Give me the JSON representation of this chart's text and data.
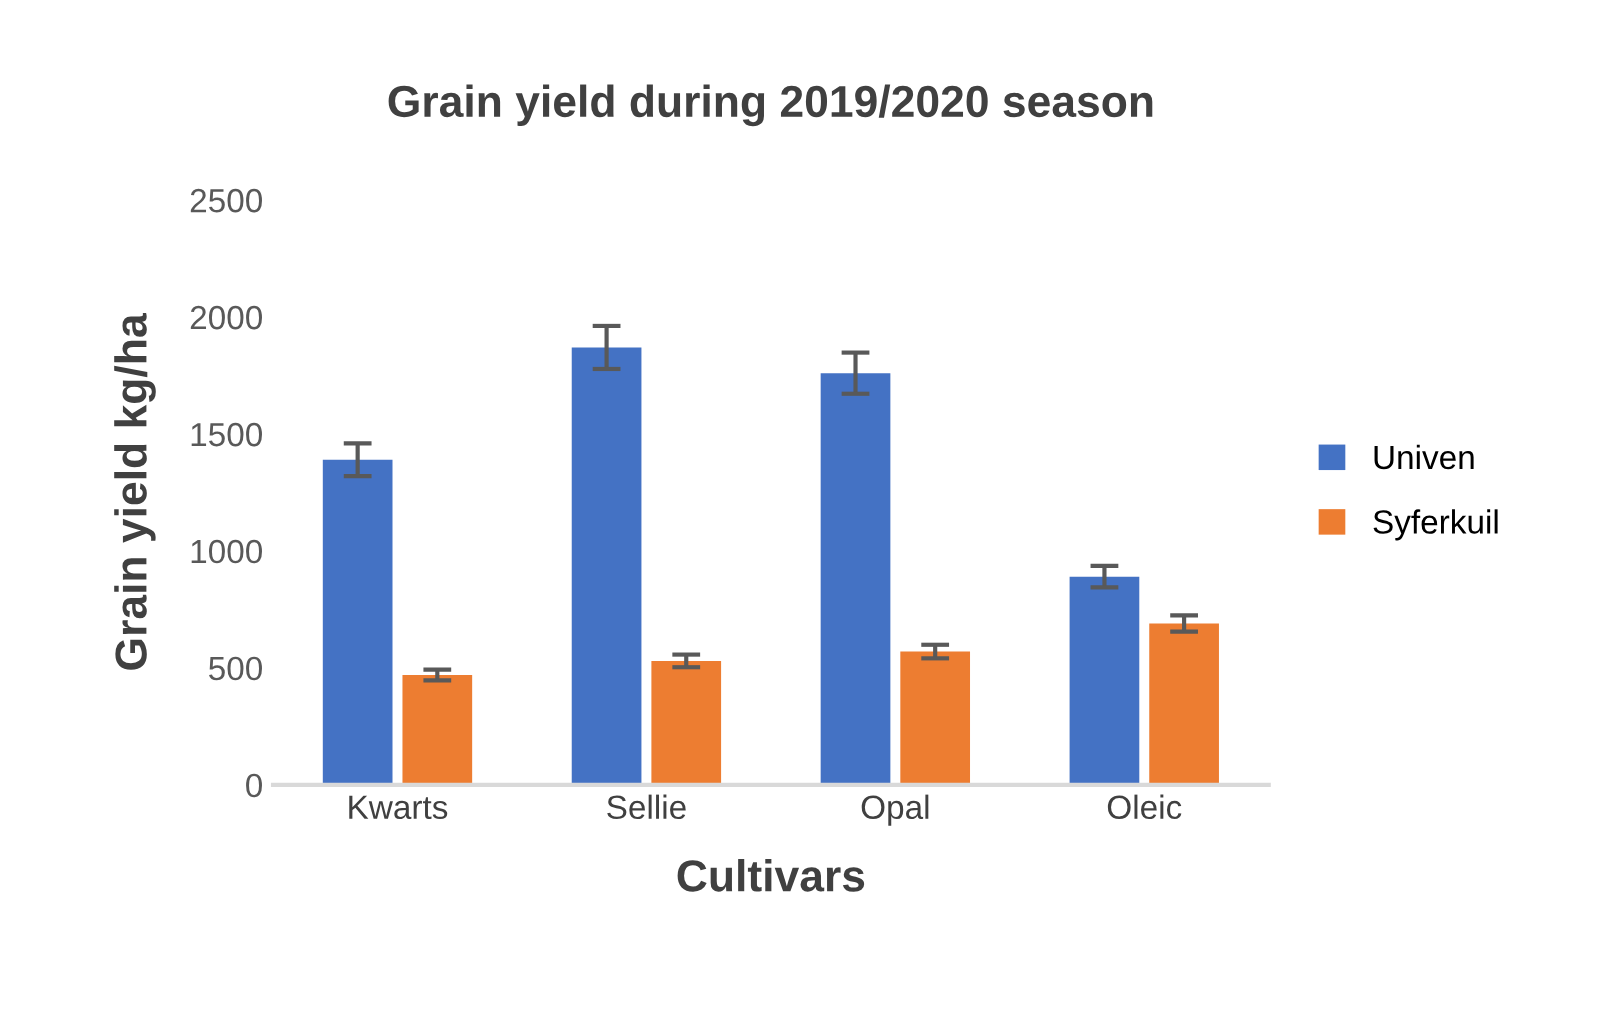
{
  "chart_data": {
    "type": "bar",
    "title": "Grain yield during 2019/2020 season",
    "xlabel": "Cultivars",
    "ylabel": "Grain yield kg/ha",
    "categories": [
      "Kwarts",
      "Sellie",
      "Opal",
      "Oleic"
    ],
    "series": [
      {
        "name": "Univen",
        "color": "#4472c4",
        "values": [
          1390,
          1870,
          1760,
          890
        ],
        "errors": [
          70,
          92,
          88,
          46
        ]
      },
      {
        "name": "Syferkuil",
        "color": "#ed7d31",
        "values": [
          470,
          530,
          570,
          690
        ],
        "errors": [
          23,
          27,
          29,
          35
        ]
      }
    ],
    "ylim": [
      0,
      2500
    ],
    "yticks": [
      0,
      500,
      1000,
      1500,
      2000,
      2500
    ],
    "grid": false,
    "legend": "right"
  }
}
